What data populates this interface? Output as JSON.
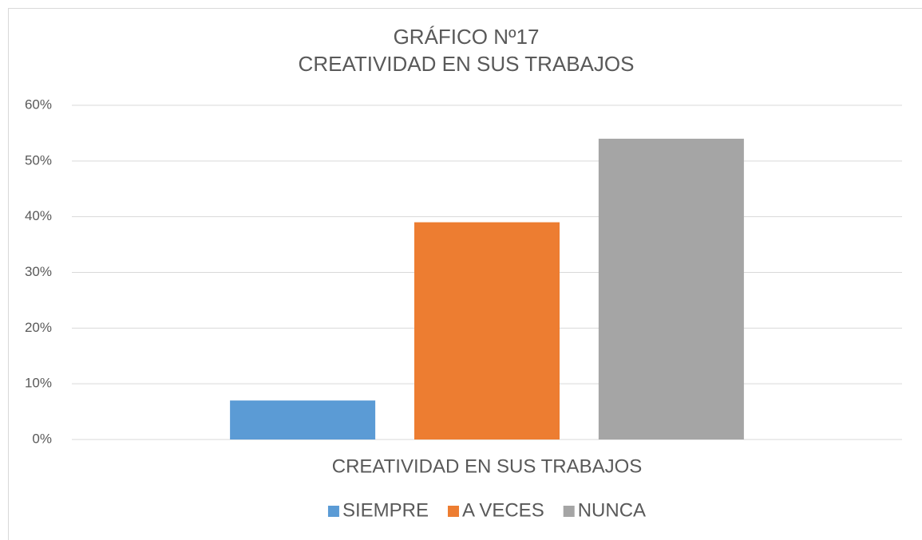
{
  "chart_data": {
    "type": "bar",
    "title": "GRÁFICO Nº17",
    "subtitle": "CREATIVIDAD EN SUS TRABAJOS",
    "categories": [
      "CREATIVIDAD EN SUS TRABAJOS"
    ],
    "series": [
      {
        "name": "SIEMPRE",
        "color": "#5b9bd5",
        "values": [
          7
        ]
      },
      {
        "name": "A VECES",
        "color": "#ed7d31",
        "values": [
          39
        ]
      },
      {
        "name": "NUNCA",
        "color": "#a5a5a5",
        "values": [
          54
        ]
      }
    ],
    "ylim": [
      0,
      60
    ],
    "yticks": [
      {
        "value": 0,
        "label": "0%"
      },
      {
        "value": 10,
        "label": "10%"
      },
      {
        "value": 20,
        "label": "20%"
      },
      {
        "value": 30,
        "label": "30%"
      },
      {
        "value": 40,
        "label": "40%"
      },
      {
        "value": 50,
        "label": "50%"
      },
      {
        "value": 60,
        "label": "60%"
      }
    ],
    "grid": true,
    "legend": "bottom"
  }
}
